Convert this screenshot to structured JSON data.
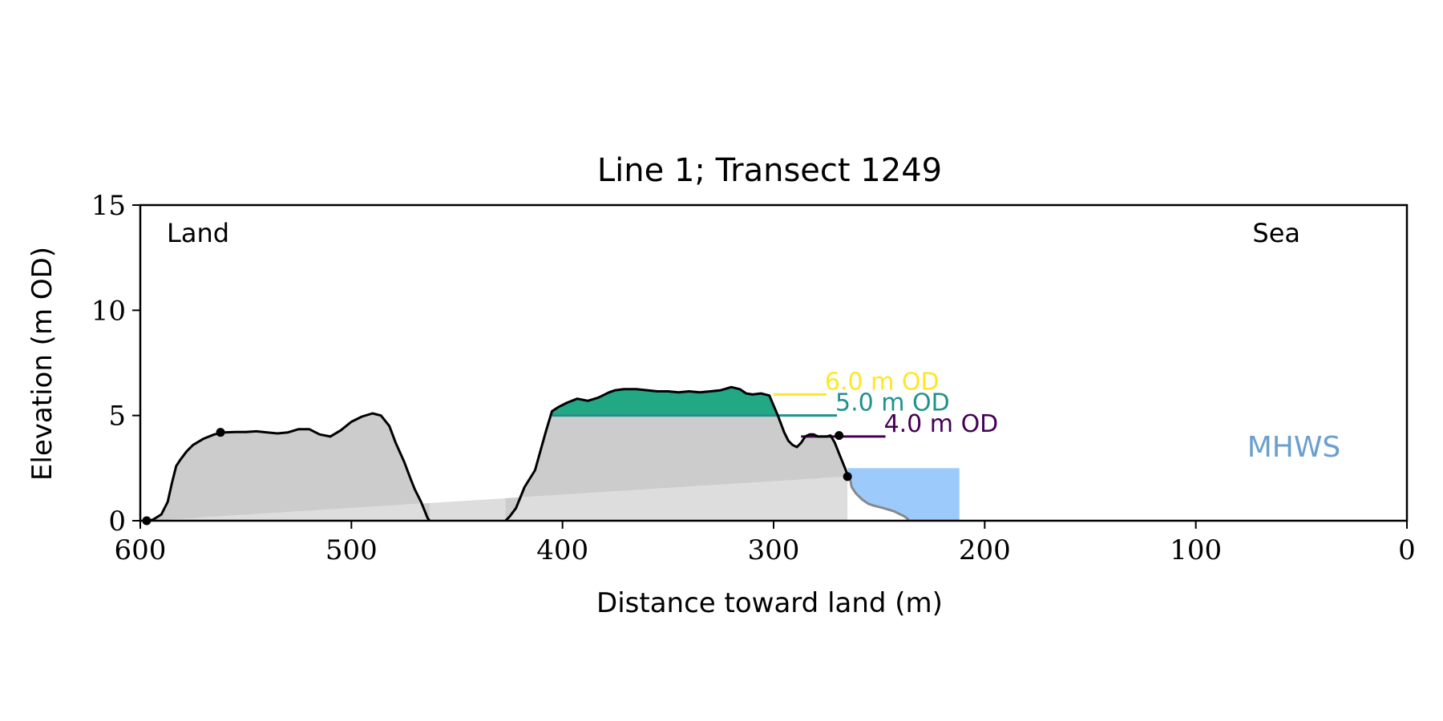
{
  "chart_data": {
    "type": "area",
    "title": "Line 1; Transect 1249",
    "xlabel": "Distance toward land (m)",
    "ylabel": "Elevation (m OD)",
    "xlim": [
      600,
      0
    ],
    "ylim": [
      0,
      15
    ],
    "x_ticks": [
      600,
      500,
      400,
      300,
      200,
      100,
      0
    ],
    "y_ticks": [
      0,
      5,
      10,
      15
    ],
    "x_tick_labels": [
      "600",
      "500",
      "400",
      "300",
      "200",
      "100",
      "0"
    ],
    "y_tick_labels": [
      "0",
      "5",
      "10",
      "15"
    ],
    "grid": false,
    "corner_labels": {
      "left": "Land",
      "right": "Sea"
    },
    "mhws": {
      "label": "MHWS",
      "elevation": 2.5,
      "x_from": 265,
      "x_to": 212,
      "color": "#9ccbfb",
      "label_color": "#6a9fcf"
    },
    "contours": [
      {
        "label": "6.0 m OD",
        "elevation": 6.0,
        "x_from": 300,
        "x_to": 275,
        "color": "#fde725"
      },
      {
        "label": "5.0 m OD",
        "elevation": 5.0,
        "x_from": 405,
        "x_to": 270,
        "color": "#21918c"
      },
      {
        "label": "4.0 m OD",
        "elevation": 4.0,
        "x_from": 287,
        "x_to": 247,
        "color": "#440154"
      }
    ],
    "profile": {
      "x": [
        597,
        594,
        590,
        587,
        585,
        583,
        581,
        578,
        575,
        570,
        565,
        560,
        555,
        550,
        545,
        540,
        535,
        530,
        525,
        520,
        515,
        510,
        505,
        500,
        495,
        490,
        486,
        482,
        479,
        475,
        472,
        470,
        467,
        465,
        464,
        463
      ],
      "y": [
        0.0,
        0.05,
        0.3,
        0.9,
        1.8,
        2.6,
        2.9,
        3.3,
        3.6,
        3.9,
        4.1,
        4.2,
        4.22,
        4.22,
        4.25,
        4.2,
        4.15,
        4.2,
        4.35,
        4.35,
        4.1,
        4.0,
        4.3,
        4.7,
        4.95,
        5.1,
        5.0,
        4.5,
        3.7,
        2.8,
        2.0,
        1.5,
        0.9,
        0.4,
        0.15,
        0.0
      ]
    },
    "profile2": {
      "x": [
        427,
        425,
        422,
        418,
        413,
        408,
        405,
        402,
        398,
        393,
        388,
        383,
        378,
        375,
        371,
        365,
        360,
        355,
        350,
        345,
        340,
        335,
        330,
        325,
        320,
        316,
        313,
        310,
        306,
        302,
        298,
        295,
        293,
        291,
        289,
        287,
        285,
        283,
        281,
        279,
        277,
        275,
        273,
        271,
        269,
        267,
        265,
        264
      ],
      "y": [
        0.0,
        0.2,
        0.6,
        1.6,
        2.4,
        4.2,
        5.2,
        5.4,
        5.6,
        5.8,
        5.7,
        5.85,
        6.1,
        6.2,
        6.25,
        6.25,
        6.2,
        6.15,
        6.15,
        6.1,
        6.15,
        6.1,
        6.15,
        6.2,
        6.35,
        6.25,
        6.05,
        6.0,
        6.05,
        5.95,
        5.0,
        4.2,
        3.8,
        3.6,
        3.5,
        3.7,
        4.0,
        4.1,
        4.1,
        4.0,
        4.0,
        4.0,
        4.05,
        3.7,
        3.2,
        2.7,
        2.2,
        2.1
      ]
    },
    "sea_profile": {
      "x": [
        264,
        263,
        261,
        258,
        255,
        252,
        248,
        243,
        238,
        236
      ],
      "y": [
        2.1,
        1.6,
        1.3,
        1.0,
        0.8,
        0.7,
        0.6,
        0.45,
        0.2,
        0.05
      ]
    },
    "baseline": {
      "x": [
        595,
        265
      ],
      "y": [
        0.0,
        2.1
      ]
    },
    "markers": [
      {
        "x": 597,
        "y": 0.0
      },
      {
        "x": 562,
        "y": 4.2
      },
      {
        "x": 269,
        "y": 4.05
      },
      {
        "x": 265,
        "y": 2.1
      }
    ]
  }
}
